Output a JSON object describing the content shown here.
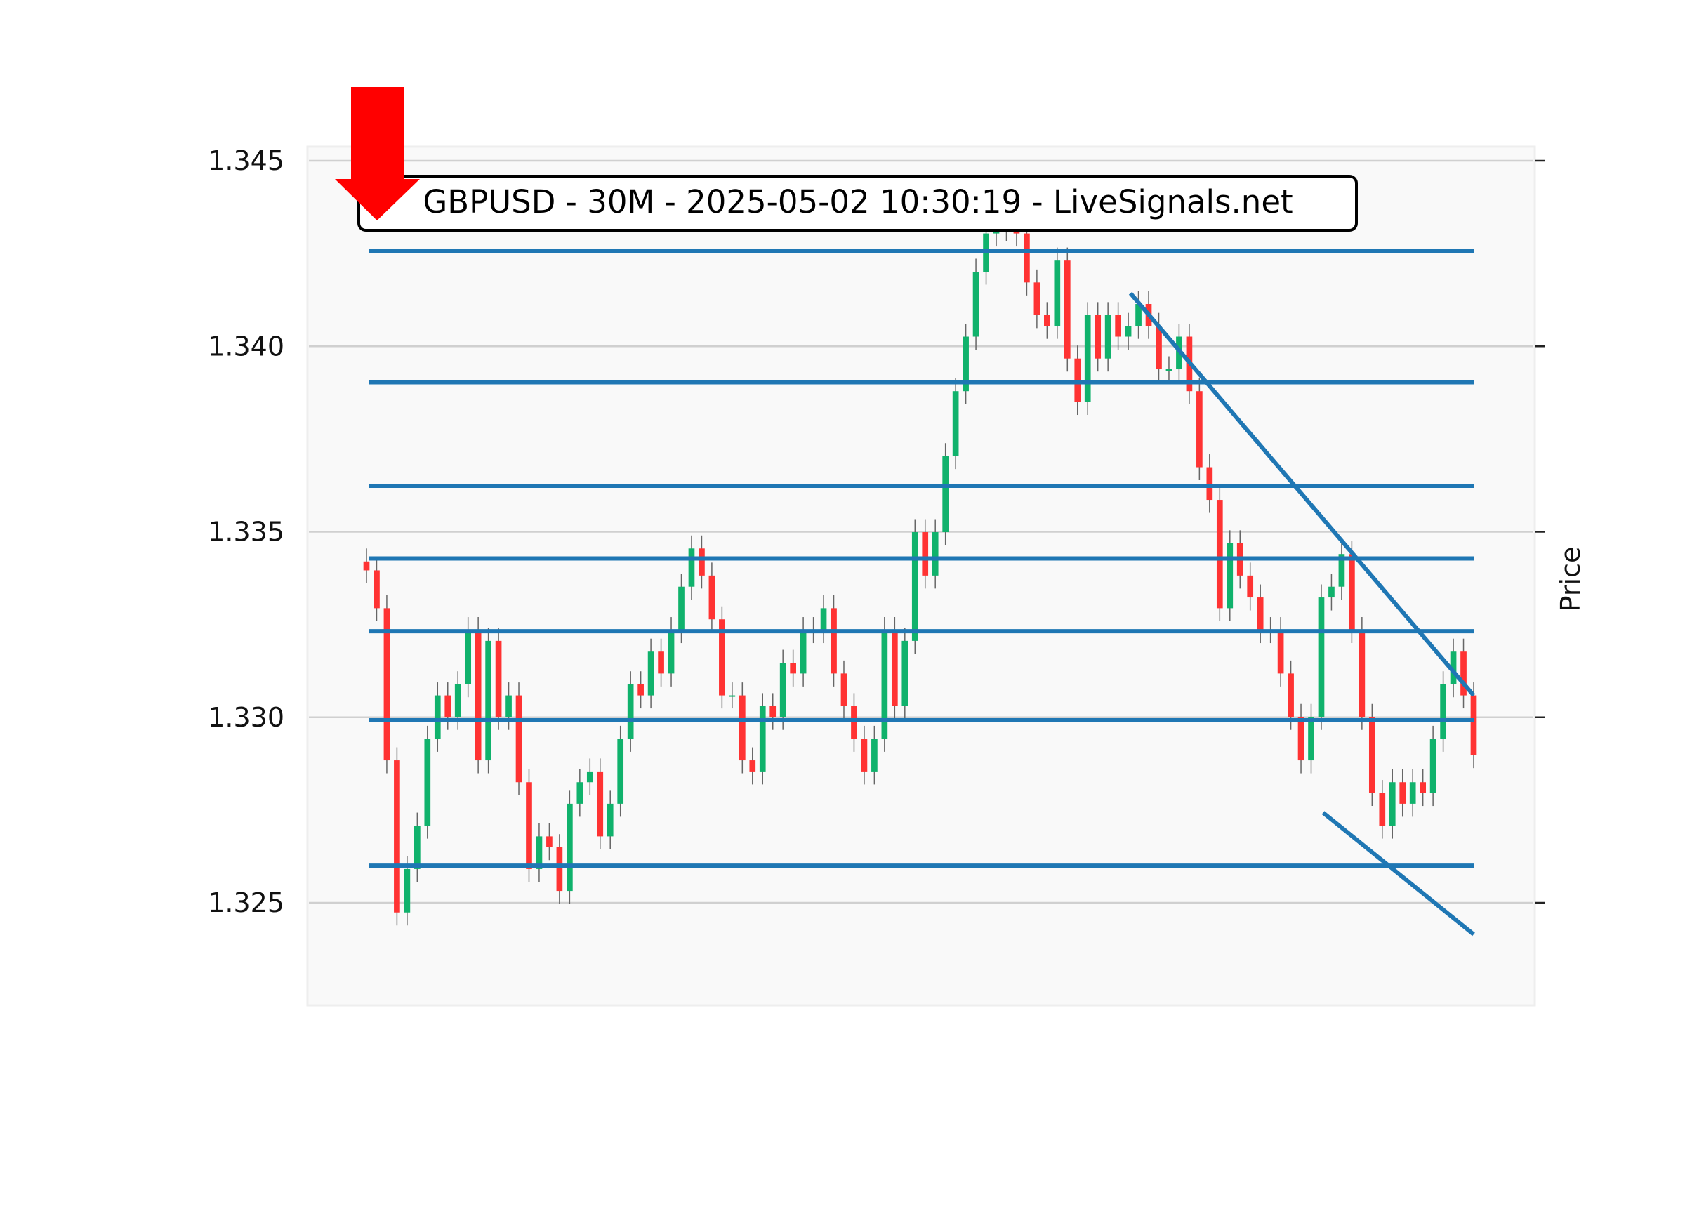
{
  "chart_data": {
    "type": "candlestick",
    "title": "GBPUSD - 30M - 2025-05-02 10:30:19 - LiveSignals.net",
    "xlabel": "",
    "ylabel": "Price",
    "ylim": [
      1.3222,
      1.3454
    ],
    "yticks": [
      1.325,
      1.33,
      1.335,
      1.34,
      1.345
    ],
    "ytick_labels": [
      "1.325",
      "1.330",
      "1.335",
      "1.340",
      "1.345"
    ],
    "grid": true,
    "first_open": 1.3342,
    "close": [
      1.33396,
      1.33294,
      1.32884,
      1.32474,
      1.32591,
      1.32708,
      1.32942,
      1.33059,
      1.33001,
      1.33089,
      1.33235,
      1.32884,
      1.33206,
      1.33001,
      1.33059,
      1.32825,
      1.32591,
      1.32679,
      1.3265,
      1.32532,
      1.32767,
      1.32825,
      1.32854,
      1.32679,
      1.32767,
      1.32942,
      1.33089,
      1.33059,
      1.33177,
      1.33118,
      1.33235,
      1.33352,
      1.33455,
      1.33382,
      1.33264,
      1.33059,
      1.33059,
      1.32884,
      1.32854,
      1.3303,
      1.33001,
      1.33147,
      1.33118,
      1.33235,
      1.33235,
      1.33294,
      1.33118,
      1.3303,
      1.32942,
      1.32854,
      1.32942,
      1.33235,
      1.3303,
      1.33206,
      1.33499,
      1.33382,
      1.33499,
      1.33704,
      1.33879,
      1.34026,
      1.34201,
      1.34304,
      1.34348,
      1.34318,
      1.34304,
      1.34172,
      1.34084,
      1.34055,
      1.34231,
      1.33967,
      1.3385,
      1.34084,
      1.33967,
      1.34084,
      1.34026,
      1.34055,
      1.34114,
      1.34055,
      1.33938,
      1.33938,
      1.34026,
      1.33879,
      1.33674,
      1.33586,
      1.33294,
      1.33469,
      1.33382,
      1.33323,
      1.33235,
      1.33235,
      1.33118,
      1.33001,
      1.32884,
      1.33001,
      1.33323,
      1.33352,
      1.3344,
      1.33235,
      1.33001,
      1.32796,
      1.32708,
      1.32825,
      1.32767,
      1.32825,
      1.32796,
      1.32942,
      1.33089,
      1.33177,
      1.33059,
      1.32898
    ],
    "horizontal_levels": [
      1.34257,
      1.33903,
      1.33624,
      1.33428,
      1.33232,
      1.32992,
      1.326
    ],
    "trend_lines": [
      {
        "from_price": 1.34143,
        "to_price": 1.33059,
        "from_fraction": 0.69,
        "to_fraction": 1.0
      },
      {
        "from_price": 1.32743,
        "to_price": 1.32415,
        "from_fraction": 0.864,
        "to_fraction": 1.0
      }
    ],
    "signal": "sell-arrow",
    "colors": {
      "up": "#10b26c",
      "down": "#ff3333",
      "wick": "#666666",
      "levels": "#1f77b4",
      "signal_arrow": "#ff0000",
      "plot_background": "#f9f9f9",
      "grid": "#d0d0d0"
    }
  }
}
